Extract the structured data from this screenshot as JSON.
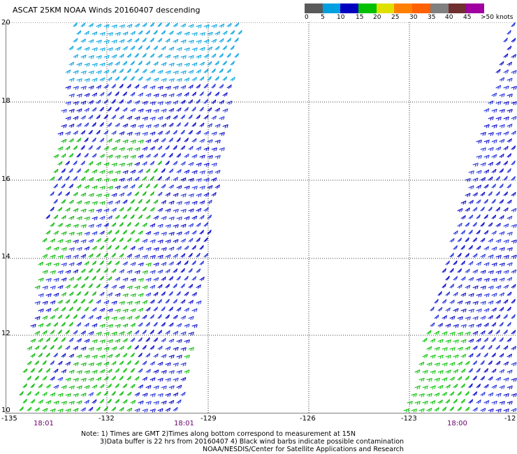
{
  "header": {
    "title": "ASCAT 25KM NOAA Winds 20160407 descending"
  },
  "legend": {
    "colors": [
      "#5a5a5a",
      "#00a0e0",
      "#0000c0",
      "#00c000",
      "#e0e000",
      "#ff8000",
      "#ff6000",
      "#808080",
      "#703030",
      "#a000a0"
    ],
    "labels": [
      "0",
      "5",
      "10",
      "15",
      "20",
      "25",
      "30",
      "35",
      "40",
      "45",
      ">50 knots"
    ]
  },
  "axes": {
    "lat_labels": [
      "20",
      "18",
      "16",
      "14",
      "12",
      "10"
    ],
    "lon_labels": [
      "-135",
      "-132",
      "-129",
      "-126",
      "-123",
      "-12"
    ]
  },
  "times": [
    "18:01",
    "18:01",
    "18:00"
  ],
  "notes": {
    "line1": "Note: 1) Times are GMT 2)Times along bottom correspond to measurement at 15N",
    "line2": "3)Data buffer is 22 hrs from 20160407 4) Black wind barbs indicate possible contamination",
    "line3": "NOAA/NESDIS/Center for Satellite Applications and Research"
  }
}
